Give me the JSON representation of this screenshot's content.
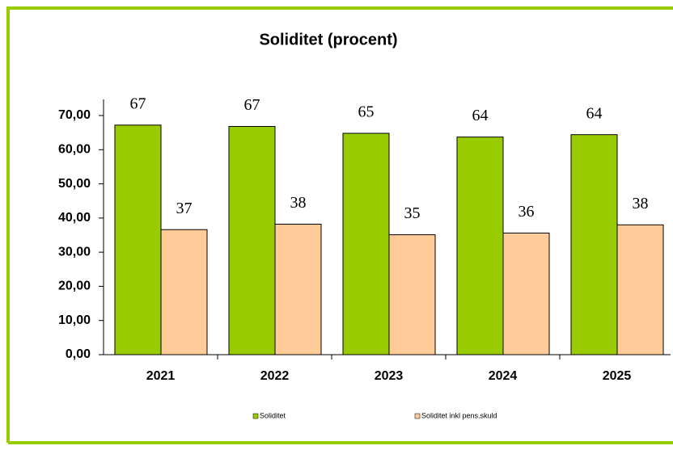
{
  "chart_data": {
    "type": "bar",
    "title": "Soliditet (procent)",
    "categories": [
      "2021",
      "2022",
      "2023",
      "2024",
      "2025"
    ],
    "series": [
      {
        "name": "Soliditet",
        "color": "#99cc00",
        "values": [
          67.2,
          66.8,
          64.8,
          63.7,
          64.4
        ],
        "value_labels": [
          "67",
          "67",
          "65",
          "64",
          "64"
        ]
      },
      {
        "name": "Soliditet inkl pens.skuld",
        "color": "#ffcc99",
        "values": [
          36.6,
          38.2,
          35.1,
          35.6,
          38.0
        ],
        "value_labels": [
          "37",
          "38",
          "35",
          "36",
          "38"
        ]
      }
    ],
    "ylim": [
      0,
      70
    ],
    "yticks": [
      {
        "value": 0,
        "label": "0,00"
      },
      {
        "value": 10,
        "label": "10,00"
      },
      {
        "value": 20,
        "label": "20,00"
      },
      {
        "value": 30,
        "label": "30,00"
      },
      {
        "value": 40,
        "label": "40,00"
      },
      {
        "value": 50,
        "label": "50,00"
      },
      {
        "value": 60,
        "label": "60,00"
      },
      {
        "value": 70,
        "label": "70,00"
      }
    ],
    "grid": false,
    "legend": "bottom"
  }
}
